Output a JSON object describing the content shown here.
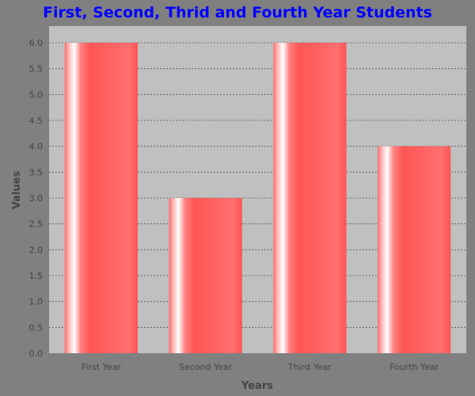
{
  "chart_data": {
    "type": "bar",
    "title": "First, Second, Thrid and Fourth Year Students",
    "xlabel": "Years",
    "ylabel": "Values",
    "categories": [
      "First Year",
      "Second Year",
      "Third Year",
      "Fourth Year"
    ],
    "values": [
      6.0,
      3.0,
      6.0,
      4.0
    ],
    "ylim": [
      0,
      6.0
    ],
    "yticks": [
      "0.0",
      "0.5",
      "1.0",
      "1.5",
      "2.0",
      "2.5",
      "3.0",
      "3.5",
      "4.0",
      "4.5",
      "5.0",
      "5.5",
      "6.0"
    ],
    "grid": true,
    "legend": false,
    "colors": {
      "background": "#808080",
      "plot_background": "#c0c0c0",
      "bar": "#ff5555",
      "title": "#0000ff",
      "gridline": "#555555",
      "text": "#444444"
    }
  }
}
